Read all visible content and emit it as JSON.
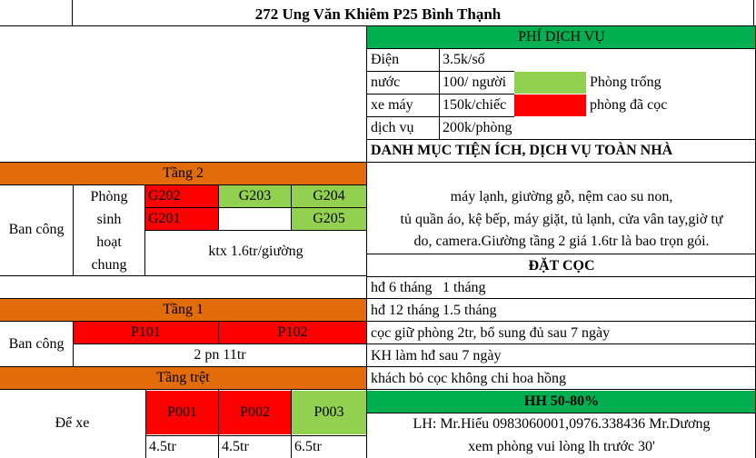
{
  "title": "272 Ung Văn Khiêm P25 Bình Thạnh",
  "fees": {
    "header": "PHÍ DỊCH VỤ",
    "rows": [
      {
        "label": "Điện",
        "value": "3.5k/số"
      },
      {
        "label": "nước",
        "value": "100/ người"
      },
      {
        "label": "xe máy",
        "value": "150k/chiếc"
      },
      {
        "label": "dịch vụ",
        "value": "200k/phòng"
      }
    ],
    "legend": {
      "vacant": "Phòng trống",
      "deposited": "phòng đã cọc"
    }
  },
  "amenities": {
    "header": "DANH MỤC TIỆN ÍCH, DỊCH VỤ TOÀN NHÀ",
    "lines": [
      "máy lạnh, giường gỗ, nệm cao su non,",
      "tủ quần áo, kệ bếp, máy giặt, tủ lạnh, cửa vân tay,giờ tự",
      "do, camera.Giường tầng 2 giá 1.6tr là bao trọn gói."
    ]
  },
  "deposit": {
    "header": "ĐẶT CỌC",
    "terms": [
      {
        "label": "hđ 6 tháng",
        "value": "1 tháng"
      },
      {
        "label": "hđ 12 tháng",
        "value": "1.5 tháng"
      }
    ],
    "notes": [
      "cọc giữ phòng 2tr, bổ sung đủ sau 7 ngày",
      "KH làm hđ sau 7 ngày",
      "khách bỏ cọc không chi hoa hồng"
    ]
  },
  "commission": "HH 50-80%",
  "contact": [
    "LH: Mr.Hiếu 0983060001,0976.338436 Mr.Dương",
    "xem phòng vui lòng lh trước 30'"
  ],
  "floor2": {
    "header": "Tầng 2",
    "balcony": "Ban công",
    "living_lines": [
      "Phòng",
      "sinh",
      "hoạt",
      "chung"
    ],
    "rooms": [
      "G202",
      "G203",
      "G204",
      "G201",
      "G205"
    ],
    "dorm": "ktx 1.6tr/giường"
  },
  "floor1": {
    "header": "Tầng 1",
    "balcony": "Ban công",
    "rooms": [
      "P101",
      "P102"
    ],
    "price": "2 pn 11tr"
  },
  "ground": {
    "header": "Tầng trệt",
    "parking": "Để xe",
    "rooms": [
      "P001",
      "P002",
      "P003"
    ],
    "prices": [
      "4.5tr",
      "4.5tr",
      "6.5tr"
    ]
  },
  "colors": {
    "header_orange": "#e26b0a",
    "vacant_green": "#92d050",
    "deposited_red": "#ff0000",
    "section_green": "#00b050"
  }
}
